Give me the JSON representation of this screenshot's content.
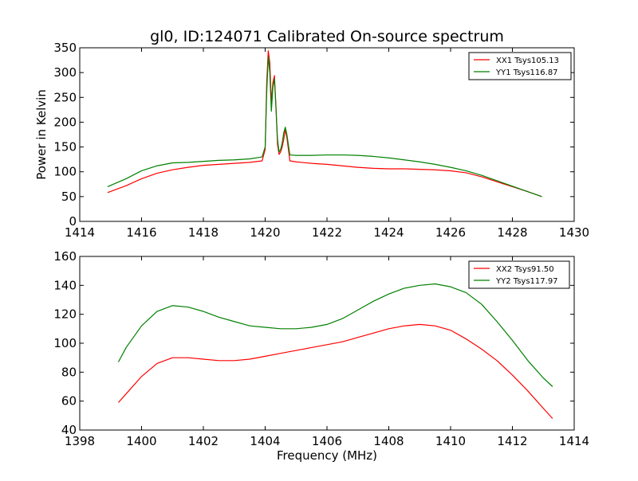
{
  "chart_data": [
    {
      "type": "line",
      "title": "gl0, ID:124071 Calibrated On-source spectrum",
      "xlabel": "",
      "ylabel": "Power in Kelvin",
      "xlim": [
        1414,
        1430
      ],
      "ylim": [
        0,
        350
      ],
      "xticks": [
        "1414",
        "1416",
        "1418",
        "1420",
        "1422",
        "1424",
        "1426",
        "1428",
        "1430"
      ],
      "yticks": [
        "0",
        "50",
        "100",
        "150",
        "200",
        "250",
        "300",
        "350"
      ],
      "xtick_values": [
        1414,
        1416,
        1418,
        1420,
        1422,
        1424,
        1426,
        1428,
        1430
      ],
      "ytick_values": [
        0,
        50,
        100,
        150,
        200,
        250,
        300,
        350
      ],
      "legend_position": "top-right",
      "series": [
        {
          "name": "XX1 Tsys105.13",
          "color": "#ff0000",
          "x": [
            1414.9,
            1415.5,
            1416.0,
            1416.5,
            1417.0,
            1417.5,
            1418.0,
            1418.5,
            1419.0,
            1419.5,
            1419.9,
            1420.0,
            1420.05,
            1420.1,
            1420.15,
            1420.2,
            1420.25,
            1420.3,
            1420.35,
            1420.4,
            1420.45,
            1420.5,
            1420.55,
            1420.6,
            1420.65,
            1420.7,
            1420.8,
            1421.0,
            1421.5,
            1422.0,
            1422.5,
            1423.0,
            1423.5,
            1424.0,
            1424.5,
            1425.0,
            1425.5,
            1426.0,
            1426.5,
            1427.0,
            1427.5,
            1428.0,
            1428.5,
            1428.95
          ],
          "y": [
            58,
            72,
            86,
            97,
            104,
            109,
            113,
            115,
            117,
            119,
            122,
            145,
            280,
            344,
            320,
            240,
            280,
            294,
            230,
            155,
            135,
            140,
            150,
            165,
            185,
            170,
            122,
            120,
            117,
            115,
            112,
            109,
            107,
            106,
            106,
            105,
            104,
            102,
            98,
            90,
            80,
            70,
            60,
            50
          ]
        },
        {
          "name": "YY1 Tsys116.87",
          "color": "#008000",
          "x": [
            1414.9,
            1415.5,
            1416.0,
            1416.5,
            1417.0,
            1417.5,
            1418.0,
            1418.5,
            1419.0,
            1419.5,
            1419.9,
            1420.0,
            1420.05,
            1420.1,
            1420.15,
            1420.2,
            1420.25,
            1420.3,
            1420.35,
            1420.4,
            1420.45,
            1420.5,
            1420.55,
            1420.6,
            1420.65,
            1420.7,
            1420.8,
            1421.0,
            1421.5,
            1422.0,
            1422.5,
            1423.0,
            1423.5,
            1424.0,
            1424.5,
            1425.0,
            1425.5,
            1426.0,
            1426.5,
            1427.0,
            1427.5,
            1428.0,
            1428.5,
            1428.95
          ],
          "y": [
            70,
            86,
            102,
            112,
            118,
            119,
            121,
            123,
            124,
            126,
            130,
            150,
            260,
            332,
            300,
            222,
            270,
            287,
            228,
            165,
            140,
            145,
            158,
            178,
            190,
            176,
            134,
            133,
            133,
            134,
            134,
            133,
            131,
            128,
            124,
            120,
            115,
            109,
            102,
            93,
            82,
            71,
            60,
            50
          ]
        }
      ]
    },
    {
      "type": "line",
      "title": "",
      "xlabel": "Frequency (MHz)",
      "ylabel": "",
      "xlim": [
        1398,
        1414
      ],
      "ylim": [
        40,
        160
      ],
      "xticks": [
        "1398",
        "1400",
        "1402",
        "1404",
        "1406",
        "1408",
        "1410",
        "1412",
        "1414"
      ],
      "yticks": [
        "40",
        "60",
        "80",
        "100",
        "120",
        "140",
        "160"
      ],
      "xtick_values": [
        1398,
        1400,
        1402,
        1404,
        1406,
        1408,
        1410,
        1412,
        1414
      ],
      "ytick_values": [
        40,
        60,
        80,
        100,
        120,
        140,
        160
      ],
      "legend_position": "top-right",
      "series": [
        {
          "name": "XX2 Tsys91.50",
          "color": "#ff0000",
          "x": [
            1399.25,
            1399.5,
            1400.0,
            1400.5,
            1401.0,
            1401.5,
            1402.0,
            1402.5,
            1403.0,
            1403.5,
            1404.0,
            1404.5,
            1405.0,
            1405.5,
            1406.0,
            1406.5,
            1407.0,
            1407.5,
            1408.0,
            1408.5,
            1409.0,
            1409.5,
            1410.0,
            1410.5,
            1411.0,
            1411.5,
            1412.0,
            1412.5,
            1413.0,
            1413.3
          ],
          "y": [
            59,
            65,
            77,
            86,
            90,
            90,
            89,
            88,
            88,
            89,
            91,
            93,
            95,
            97,
            99,
            101,
            104,
            107,
            110,
            112,
            113,
            112,
            109,
            103,
            96,
            88,
            78,
            67,
            55,
            48
          ]
        },
        {
          "name": "YY2 Tsys117.97",
          "color": "#008000",
          "x": [
            1399.25,
            1399.5,
            1400.0,
            1400.5,
            1401.0,
            1401.5,
            1402.0,
            1402.5,
            1403.0,
            1403.5,
            1404.0,
            1404.5,
            1405.0,
            1405.5,
            1406.0,
            1406.5,
            1407.0,
            1407.5,
            1408.0,
            1408.5,
            1409.0,
            1409.5,
            1410.0,
            1410.5,
            1411.0,
            1411.5,
            1412.0,
            1412.5,
            1413.0,
            1413.3
          ],
          "y": [
            87,
            97,
            112,
            122,
            126,
            125,
            122,
            118,
            115,
            112,
            111,
            110,
            110,
            111,
            113,
            117,
            123,
            129,
            134,
            138,
            140,
            141,
            139,
            135,
            127,
            115,
            102,
            88,
            76,
            70
          ]
        }
      ]
    }
  ]
}
